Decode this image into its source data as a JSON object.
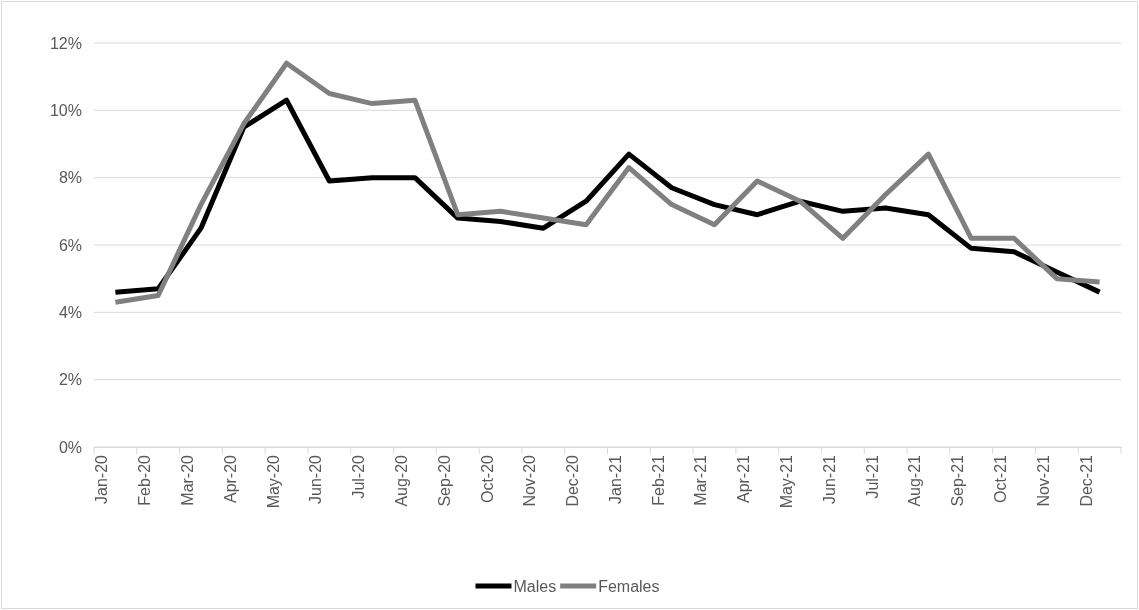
{
  "chart_data": {
    "type": "line",
    "categories": [
      "Jan-20",
      "Feb-20",
      "Mar-20",
      "Apr-20",
      "May-20",
      "Jun-20",
      "Jul-20",
      "Aug-20",
      "Sep-20",
      "Oct-20",
      "Nov-20",
      "Dec-20",
      "Jan-21",
      "Feb-21",
      "Mar-21",
      "Apr-21",
      "May-21",
      "Jun-21",
      "Jul-21",
      "Aug-21",
      "Sep-21",
      "Oct-21",
      "Nov-21",
      "Dec-21"
    ],
    "series": [
      {
        "name": "Males",
        "color": "#000000",
        "values": [
          4.6,
          4.7,
          6.5,
          9.5,
          10.3,
          7.9,
          8.0,
          8.0,
          6.8,
          6.7,
          6.5,
          7.3,
          8.7,
          7.7,
          7.2,
          6.9,
          7.3,
          7.0,
          7.1,
          6.9,
          5.9,
          5.8,
          5.2,
          4.6
        ]
      },
      {
        "name": "Females",
        "color": "#808080",
        "values": [
          4.3,
          4.5,
          7.2,
          9.6,
          11.4,
          10.5,
          10.2,
          10.3,
          6.9,
          7.0,
          6.8,
          6.6,
          8.3,
          7.2,
          6.6,
          7.9,
          7.3,
          6.2,
          7.5,
          8.7,
          6.2,
          6.2,
          5.0,
          4.9
        ]
      }
    ],
    "ylim": [
      0,
      12
    ],
    "yticks": [
      {
        "value": 0,
        "label": "0%"
      },
      {
        "value": 2,
        "label": "2%"
      },
      {
        "value": 4,
        "label": "4%"
      },
      {
        "value": 6,
        "label": "6%"
      },
      {
        "value": 8,
        "label": "8%"
      },
      {
        "value": 10,
        "label": "10%"
      },
      {
        "value": 12,
        "label": "12%"
      }
    ],
    "grid": "y",
    "legend": "bottom",
    "marker": "none",
    "line_style": "solid"
  }
}
